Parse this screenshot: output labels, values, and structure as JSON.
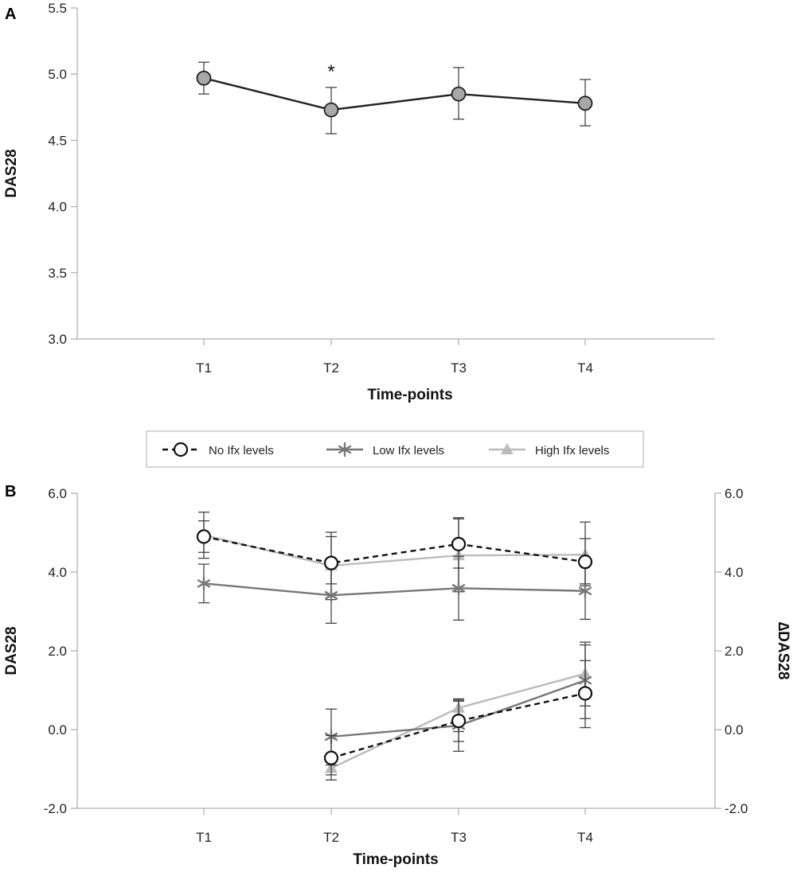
{
  "chart_data": [
    {
      "panel_label": "A",
      "type": "line",
      "xlabel": "Time-points",
      "ylabel": "DAS28",
      "categories": [
        "T1",
        "T2",
        "T3",
        "T4"
      ],
      "ylim": [
        3.0,
        5.5
      ],
      "yticks": [
        "3.0",
        "3.5",
        "4.0",
        "4.5",
        "5.0",
        "5.5"
      ],
      "series": [
        {
          "name": "DAS28",
          "values": [
            4.97,
            4.73,
            4.85,
            4.78
          ],
          "err_low": [
            4.85,
            4.55,
            4.66,
            4.61
          ],
          "err_high": [
            5.09,
            4.9,
            5.05,
            4.96
          ],
          "color": "#222222",
          "fill": "#a8a8a8"
        }
      ],
      "annotations": [
        {
          "category": "T2",
          "text": "*"
        }
      ]
    },
    {
      "panel_label": "B",
      "type": "line",
      "xlabel": "Time-points",
      "ylabel": "DAS28",
      "ylabel_right": "∆DAS28",
      "categories": [
        "T1",
        "T2",
        "T3",
        "T4"
      ],
      "ylim": [
        -2.0,
        6.0
      ],
      "yticks": [
        "-2.0",
        "0.0",
        "2.0",
        "4.0",
        "6.0"
      ],
      "legend": [
        {
          "label": "No Ifx levels",
          "marker": "circle",
          "dash": true,
          "color": "#111111"
        },
        {
          "label": "Low Ifx levels",
          "marker": "asterisk",
          "dash": false,
          "color": "#777777"
        },
        {
          "label": "High Ifx levels",
          "marker": "triangle",
          "dash": false,
          "color": "#bbbbbb"
        }
      ],
      "series": [
        {
          "name": "No Ifx levels – DAS28",
          "marker": "circle",
          "color": "#111111",
          "dash": true,
          "values": [
            4.9,
            4.23,
            4.71,
            4.26
          ],
          "err_low": [
            4.5,
            3.7,
            4.1,
            3.7
          ],
          "err_high": [
            5.3,
            4.9,
            5.35,
            4.85
          ]
        },
        {
          "name": "Low Ifx levels – DAS28",
          "marker": "asterisk",
          "color": "#777777",
          "dash": false,
          "values": [
            3.71,
            3.41,
            3.59,
            3.52
          ],
          "err_low": [
            3.22,
            2.7,
            2.78,
            2.8
          ],
          "err_high": [
            4.2,
            4.12,
            4.4,
            4.25
          ]
        },
        {
          "name": "High Ifx levels – DAS28",
          "marker": "triangle",
          "color": "#bbbbbb",
          "dash": false,
          "values": [
            4.94,
            4.16,
            4.42,
            4.44
          ],
          "err_low": [
            4.35,
            3.3,
            3.5,
            3.65
          ],
          "err_high": [
            5.52,
            5.01,
            5.38,
            5.27
          ]
        },
        {
          "name": "No Ifx levels – ∆DAS28",
          "marker": "circle",
          "color": "#111111",
          "dash": true,
          "values": [
            null,
            -0.72,
            0.22,
            0.92
          ],
          "err_low": [
            null,
            -1.28,
            -0.3,
            0.05
          ],
          "err_high": [
            null,
            -0.15,
            0.75,
            1.75
          ]
        },
        {
          "name": "Low Ifx levels – ∆DAS28",
          "marker": "asterisk",
          "color": "#777777",
          "dash": false,
          "values": [
            null,
            -0.18,
            0.1,
            1.25
          ],
          "err_low": [
            null,
            -0.9,
            -0.55,
            0.28
          ],
          "err_high": [
            null,
            0.52,
            0.72,
            2.22
          ]
        },
        {
          "name": "High Ifx levels – ∆DAS28",
          "marker": "triangle",
          "color": "#bbbbbb",
          "dash": false,
          "values": [
            null,
            -0.98,
            0.55,
            1.42
          ],
          "err_low": [
            null,
            -1.15,
            -0.05,
            0.6
          ],
          "err_high": [
            null,
            -0.8,
            0.78,
            2.15
          ]
        }
      ]
    }
  ]
}
